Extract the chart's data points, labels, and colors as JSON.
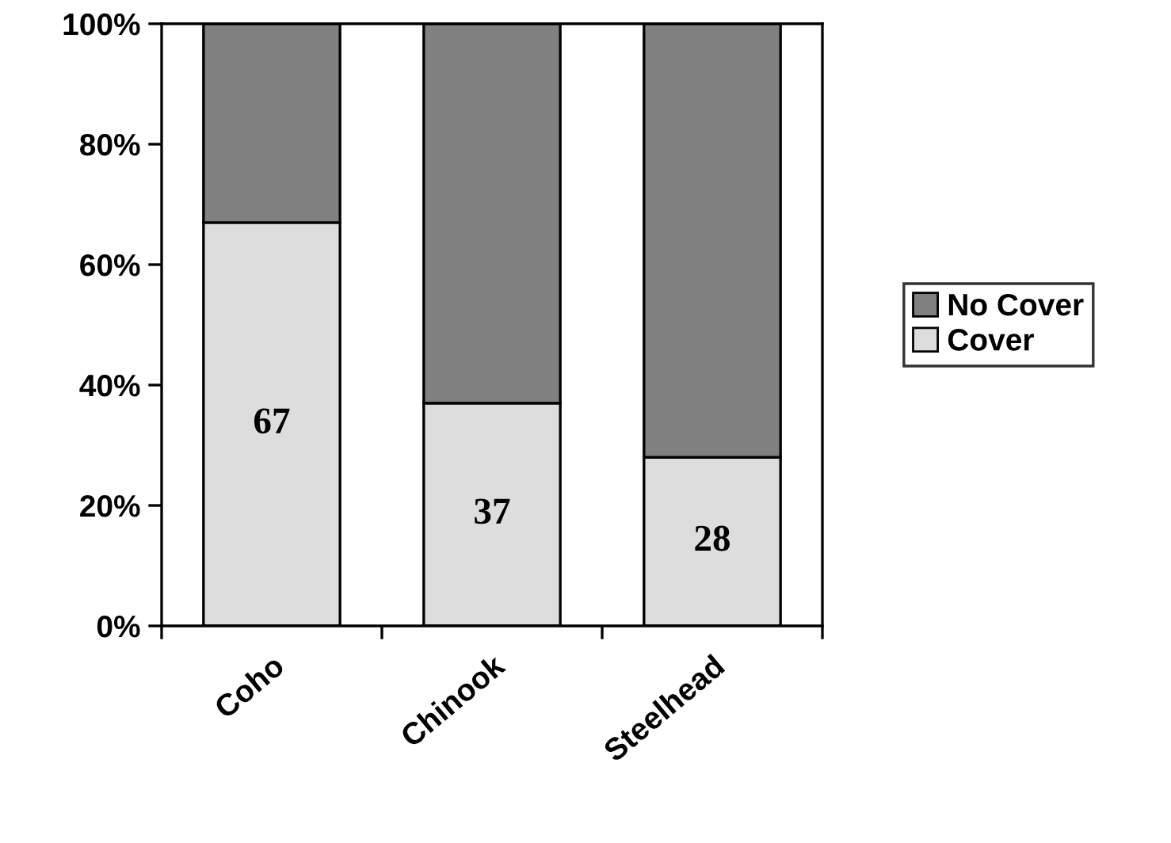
{
  "chart_data": {
    "type": "bar",
    "stacked": true,
    "categories": [
      "Coho",
      "Chinook",
      "Steelhead"
    ],
    "series": [
      {
        "name": "Cover",
        "color": "#dddddd",
        "values": [
          67,
          37,
          28
        ],
        "value_labels": [
          "67",
          "37",
          "28"
        ]
      },
      {
        "name": "No Cover",
        "color": "#808080",
        "values": [
          33,
          63,
          72
        ]
      }
    ],
    "ylim": [
      0,
      100
    ],
    "yticks": [
      {
        "value": 0,
        "label": "0%"
      },
      {
        "value": 20,
        "label": "20%"
      },
      {
        "value": 40,
        "label": "40%"
      },
      {
        "value": 60,
        "label": "60%"
      },
      {
        "value": 80,
        "label": "80%"
      },
      {
        "value": 100,
        "label": "100%"
      }
    ],
    "legend": "right"
  }
}
